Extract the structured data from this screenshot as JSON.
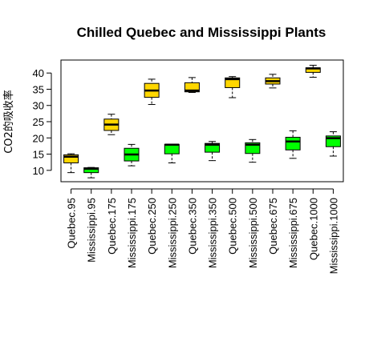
{
  "chart_data": {
    "type": "boxplot",
    "title": "Chilled Quebec and Mississippi Plants",
    "xlabel": "",
    "ylabel": "CO2的吸收率",
    "ylim": [
      6.5,
      44
    ],
    "yticks": [
      10,
      15,
      20,
      25,
      30,
      35,
      40
    ],
    "grid": false,
    "legend": "none",
    "colors": {
      "Quebec": "#ffd700",
      "Mississippi": "#00ff00",
      "outline": "#000000"
    },
    "categories": [
      "Quebec.95",
      "Mississippi.95",
      "Quebec.175",
      "Mississippi.175",
      "Quebec.250",
      "Mississippi.250",
      "Quebec.350",
      "Mississippi.350",
      "Quebec.500",
      "Mississippi.500",
      "Quebec.675",
      "Mississippi.675",
      "Quebec.1000",
      "Mississippi.1000"
    ],
    "boxes": [
      {
        "group": "Quebec",
        "min": 9.3,
        "q1": 12.3,
        "median": 14.2,
        "q3": 14.8,
        "max": 15.1
      },
      {
        "group": "Mississippi",
        "min": 7.7,
        "q1": 9.3,
        "median": 10.5,
        "q3": 10.8,
        "max": 10.9
      },
      {
        "group": "Quebec",
        "min": 21.0,
        "q1": 22.3,
        "median": 24.1,
        "q3": 25.8,
        "max": 27.3
      },
      {
        "group": "Mississippi",
        "min": 11.4,
        "q1": 12.9,
        "median": 14.9,
        "q3": 16.8,
        "max": 18.0
      },
      {
        "group": "Quebec",
        "min": 30.3,
        "q1": 32.5,
        "median": 34.6,
        "q3": 36.8,
        "max": 38.1
      },
      {
        "group": "Mississippi",
        "min": 12.3,
        "q1": 15.1,
        "median": 17.9,
        "q3": 18.0,
        "max": 18.0
      },
      {
        "group": "Quebec",
        "min": 34.0,
        "q1": 34.2,
        "median": 34.6,
        "q3": 37.0,
        "max": 38.6
      },
      {
        "group": "Mississippi",
        "min": 13.0,
        "q1": 15.6,
        "median": 17.9,
        "q3": 18.3,
        "max": 18.9
      },
      {
        "group": "Quebec",
        "min": 32.4,
        "q1": 35.5,
        "median": 38.1,
        "q3": 38.5,
        "max": 38.9
      },
      {
        "group": "Mississippi",
        "min": 12.5,
        "q1": 15.2,
        "median": 17.9,
        "q3": 18.5,
        "max": 19.5
      },
      {
        "group": "Quebec",
        "min": 35.4,
        "q1": 36.6,
        "median": 37.5,
        "q3": 38.5,
        "max": 39.6
      },
      {
        "group": "Mississippi",
        "min": 13.7,
        "q1": 16.3,
        "median": 18.9,
        "q3": 20.2,
        "max": 22.2
      },
      {
        "group": "Quebec",
        "min": 38.7,
        "q1": 40.2,
        "median": 41.4,
        "q3": 41.6,
        "max": 42.4
      },
      {
        "group": "Mississippi",
        "min": 14.4,
        "q1": 17.3,
        "median": 19.9,
        "q3": 20.6,
        "max": 21.9
      }
    ]
  }
}
